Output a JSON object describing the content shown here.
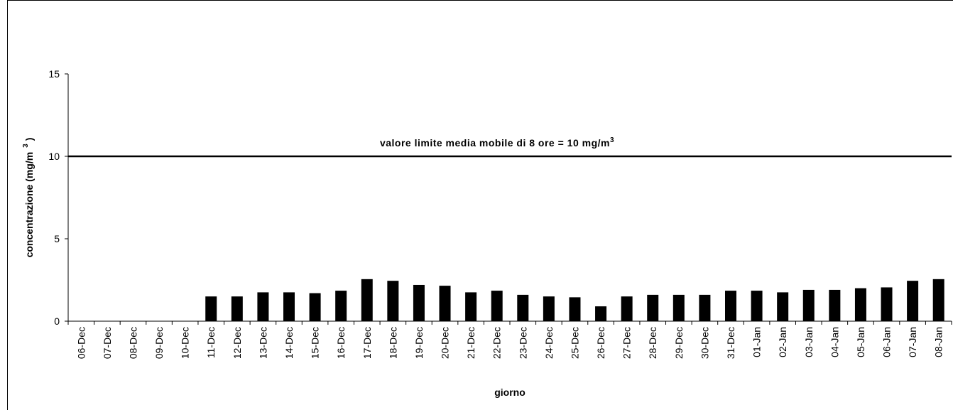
{
  "chart_data": {
    "type": "bar",
    "y_label": "concentrazione (mg/m",
    "y_label_superscript": "3",
    "y_label_end": ")",
    "x_label": "giorno",
    "annotation": "valore limite media mobile di 8 ore = 10 mg/m",
    "annotation_superscript": "3",
    "reference_line": 10,
    "categories": [
      "06-Dec",
      "07-Dec",
      "08-Dec",
      "09-Dec",
      "10-Dec",
      "11-Dec",
      "12-Dec",
      "13-Dec",
      "14-Dec",
      "15-Dec",
      "16-Dec",
      "17-Dec",
      "18-Dec",
      "19-Dec",
      "20-Dec",
      "21-Dec",
      "22-Dec",
      "23-Dec",
      "24-Dec",
      "25-Dec",
      "26-Dec",
      "27-Dec",
      "28-Dec",
      "29-Dec",
      "30-Dec",
      "31-Dec",
      "01-Jan",
      "02-Jan",
      "03-Jan",
      "04-Jan",
      "05-Jan",
      "06-Jan",
      "07-Jan",
      "08-Jan"
    ],
    "values": [
      null,
      null,
      null,
      null,
      null,
      1.5,
      1.5,
      1.75,
      1.75,
      1.7,
      1.85,
      2.55,
      2.45,
      2.2,
      2.15,
      1.75,
      1.85,
      1.6,
      1.5,
      1.45,
      0.9,
      1.5,
      1.6,
      1.6,
      1.6,
      1.85,
      1.85,
      1.75,
      1.9,
      1.9,
      2.0,
      2.05,
      2.45,
      2.55
    ],
    "color": "#000000",
    "ylim": [
      0,
      15
    ],
    "yticks": [
      0,
      5,
      10,
      15
    ]
  }
}
